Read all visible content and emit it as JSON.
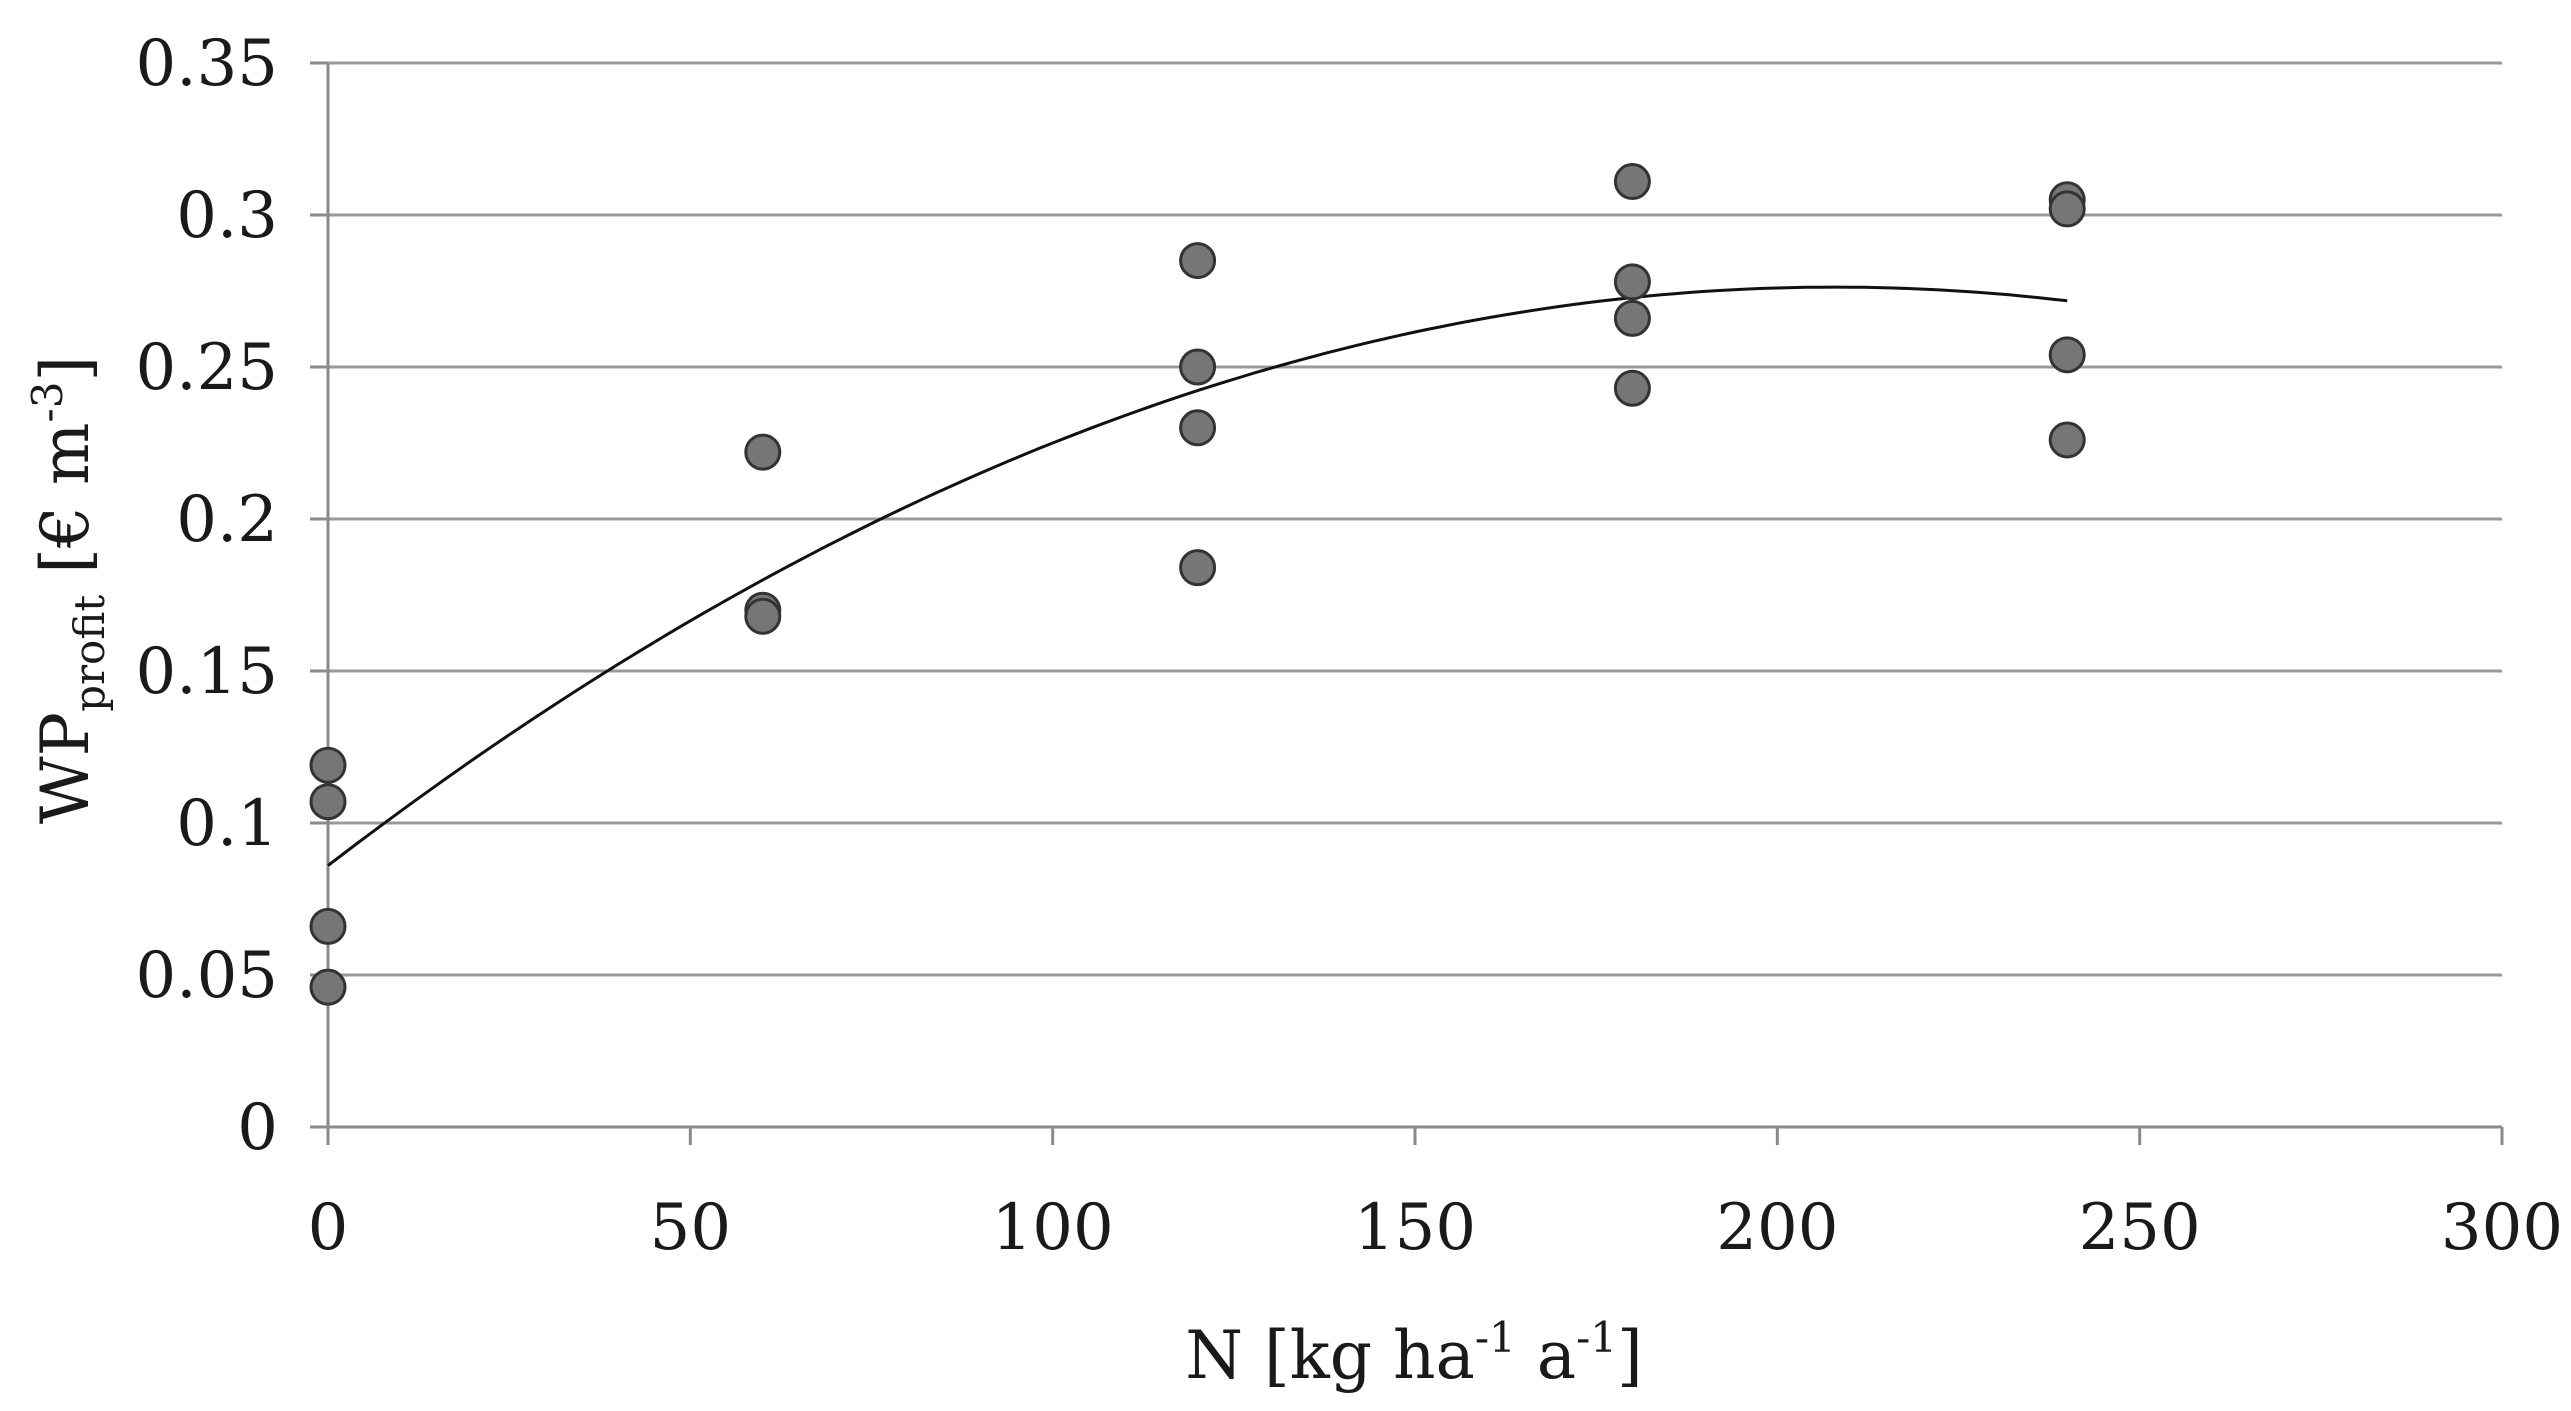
{
  "chart_data": {
    "type": "scatter",
    "title": "",
    "xlabel": {
      "main": "N [kg ha",
      "sup1": "-1",
      "mid": " a",
      "sup2": "-1",
      "end": "]"
    },
    "ylabel": {
      "main": "WP",
      "sub": "profit",
      "mid": " [€ m",
      "sup": "-3",
      "end": "]"
    },
    "xlim": [
      0,
      300
    ],
    "ylim": [
      0,
      0.35
    ],
    "xticks": [
      0,
      50,
      100,
      150,
      200,
      250,
      300
    ],
    "xtick_labels": [
      "0",
      "50",
      "100",
      "150",
      "200",
      "250",
      "300"
    ],
    "yticks": [
      0,
      0.05,
      0.1,
      0.15,
      0.2,
      0.25,
      0.3,
      0.35
    ],
    "ytick_labels": [
      "0",
      "0.05",
      "0.1",
      "0.15",
      "0.2",
      "0.25",
      "0.3",
      "0.35"
    ],
    "grid": "horizontal",
    "points": [
      {
        "x": 0,
        "y": 0.119
      },
      {
        "x": 0,
        "y": 0.107
      },
      {
        "x": 0,
        "y": 0.066
      },
      {
        "x": 0,
        "y": 0.046
      },
      {
        "x": 60,
        "y": 0.222
      },
      {
        "x": 60,
        "y": 0.17
      },
      {
        "x": 60,
        "y": 0.168
      },
      {
        "x": 120,
        "y": 0.285
      },
      {
        "x": 120,
        "y": 0.25
      },
      {
        "x": 120,
        "y": 0.23
      },
      {
        "x": 120,
        "y": 0.184
      },
      {
        "x": 180,
        "y": 0.311
      },
      {
        "x": 180,
        "y": 0.278
      },
      {
        "x": 180,
        "y": 0.266
      },
      {
        "x": 180,
        "y": 0.243
      },
      {
        "x": 240,
        "y": 0.305
      },
      {
        "x": 240,
        "y": 0.302
      },
      {
        "x": 240,
        "y": 0.254
      },
      {
        "x": 240,
        "y": 0.226
      }
    ],
    "trendline": {
      "type": "polynomial",
      "x_range": [
        0,
        240
      ],
      "coefficients": {
        "a": -4.4e-06,
        "b": 0.00183,
        "c": 0.086
      }
    }
  }
}
